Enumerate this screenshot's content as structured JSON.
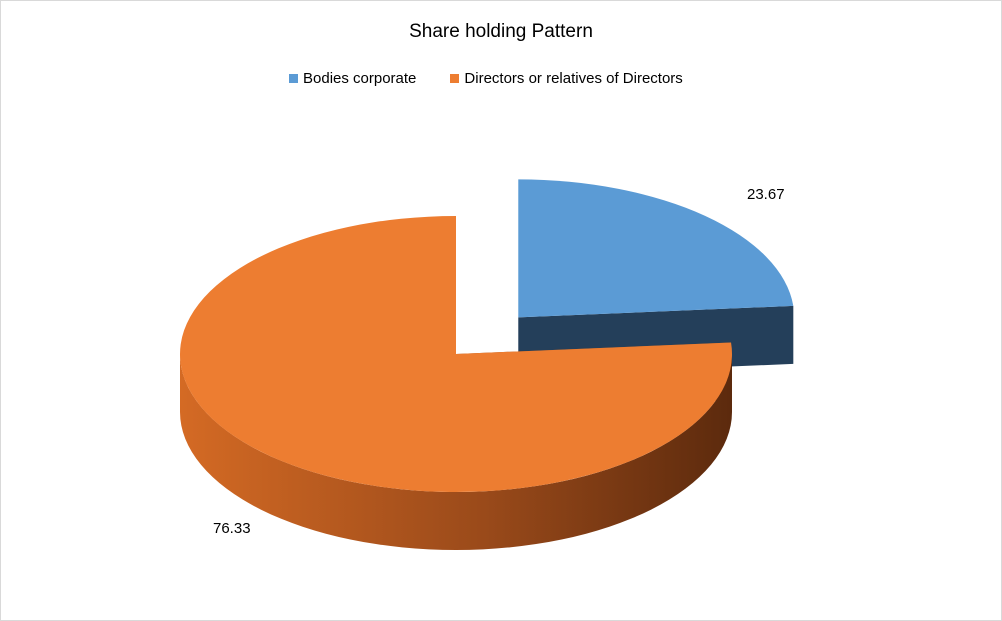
{
  "chart_data": {
    "type": "pie",
    "title": "Share holding Pattern",
    "categories": [
      "Bodies corporate",
      "Directors or relatives of Directors"
    ],
    "values": [
      23.67,
      76.33
    ],
    "data_labels": [
      "23.67",
      "76.33"
    ],
    "colors": [
      "#5b9bd5",
      "#ed7d31"
    ],
    "legend_position": "top",
    "style": "3d-exploded"
  }
}
